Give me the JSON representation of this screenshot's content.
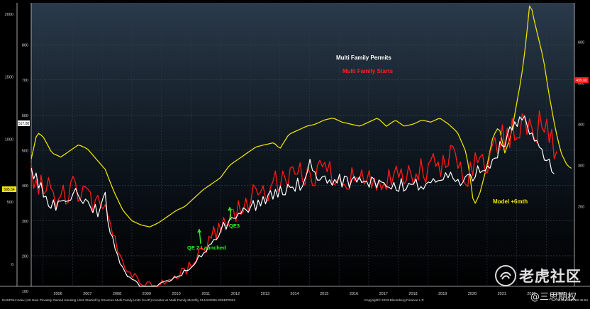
{
  "chart_data": {
    "type": "line",
    "x_ticks": [
      "2006",
      "2007",
      "2008",
      "2009",
      "2010",
      "2011",
      "2012",
      "2013",
      "2014",
      "2015",
      "2016",
      "2017",
      "2018",
      "2019",
      "2020",
      "2021",
      "2022",
      "2023"
    ],
    "left_axis_outer_ticks": [
      "2000",
      "1500",
      "1000",
      "500",
      "0"
    ],
    "left_axis_inner_ticks": [
      "800",
      "700",
      "600",
      "500",
      "400",
      "300",
      "200",
      "100"
    ],
    "right_axis_ticks": [
      "600",
      "500",
      "400",
      "300",
      "200"
    ],
    "grid": true,
    "series": [
      {
        "name": "Multi Family Permits",
        "color": "#ffffff",
        "axis": "left-inner",
        "anchors": [
          [
            2005.6,
            450
          ],
          [
            2005.8,
            410
          ],
          [
            2006.0,
            375
          ],
          [
            2006.2,
            355
          ],
          [
            2006.5,
            340
          ],
          [
            2006.8,
            360
          ],
          [
            2007.0,
            385
          ],
          [
            2007.3,
            370
          ],
          [
            2007.6,
            345
          ],
          [
            2007.8,
            330
          ],
          [
            2008.0,
            315
          ],
          [
            2008.05,
            430
          ],
          [
            2008.15,
            300
          ],
          [
            2008.4,
            240
          ],
          [
            2008.6,
            175
          ],
          [
            2008.9,
            140
          ],
          [
            2009.1,
            125
          ],
          [
            2009.3,
            110
          ],
          [
            2009.5,
            105
          ],
          [
            2009.8,
            112
          ],
          [
            2010.0,
            120
          ],
          [
            2010.3,
            130
          ],
          [
            2010.6,
            145
          ],
          [
            2010.9,
            160
          ],
          [
            2011.2,
            185
          ],
          [
            2011.5,
            215
          ],
          [
            2011.8,
            250
          ],
          [
            2012.1,
            280
          ],
          [
            2012.4,
            300
          ],
          [
            2012.7,
            325
          ],
          [
            2013.0,
            335
          ],
          [
            2013.3,
            355
          ],
          [
            2013.6,
            365
          ],
          [
            2014.0,
            380
          ],
          [
            2014.3,
            395
          ],
          [
            2014.6,
            400
          ],
          [
            2014.9,
            410
          ],
          [
            2015.0,
            440
          ],
          [
            2015.05,
            470
          ],
          [
            2015.2,
            415
          ],
          [
            2015.5,
            405
          ],
          [
            2015.8,
            420
          ],
          [
            2016.1,
            415
          ],
          [
            2016.5,
            410
          ],
          [
            2016.9,
            410
          ],
          [
            2017.3,
            400
          ],
          [
            2017.7,
            395
          ],
          [
            2018.1,
            398
          ],
          [
            2018.5,
            402
          ],
          [
            2018.9,
            405
          ],
          [
            2019.3,
            410
          ],
          [
            2019.7,
            430
          ],
          [
            2020.0,
            415
          ],
          [
            2020.2,
            390
          ],
          [
            2020.35,
            425
          ],
          [
            2020.6,
            440
          ],
          [
            2020.9,
            455
          ],
          [
            2021.2,
            480
          ],
          [
            2021.5,
            510
          ],
          [
            2021.8,
            545
          ],
          [
            2022.0,
            570
          ],
          [
            2022.15,
            575
          ],
          [
            2022.4,
            560
          ],
          [
            2022.7,
            525
          ],
          [
            2023.0,
            480
          ],
          [
            2023.2,
            445
          ],
          [
            2023.3,
            430
          ]
        ]
      },
      {
        "name": "Multi Family Starts",
        "color": "#ff1a1a",
        "axis": "left-inner",
        "anchors": [
          [
            2005.6,
            445
          ],
          [
            2005.9,
            405
          ],
          [
            2006.2,
            385
          ],
          [
            2006.5,
            360
          ],
          [
            2006.8,
            375
          ],
          [
            2007.0,
            390
          ],
          [
            2007.3,
            380
          ],
          [
            2007.6,
            355
          ],
          [
            2007.9,
            340
          ],
          [
            2008.1,
            320
          ],
          [
            2008.4,
            250
          ],
          [
            2008.7,
            180
          ],
          [
            2009.0,
            150
          ],
          [
            2009.3,
            125
          ],
          [
            2009.6,
            115
          ],
          [
            2009.9,
            120
          ],
          [
            2010.2,
            128
          ],
          [
            2010.5,
            140
          ],
          [
            2010.8,
            158
          ],
          [
            2011.1,
            185
          ],
          [
            2011.4,
            215
          ],
          [
            2011.7,
            255
          ],
          [
            2012.0,
            290
          ],
          [
            2012.3,
            305
          ],
          [
            2012.6,
            335
          ],
          [
            2012.9,
            350
          ],
          [
            2013.2,
            375
          ],
          [
            2013.5,
            385
          ],
          [
            2013.8,
            400
          ],
          [
            2014.1,
            410
          ],
          [
            2014.4,
            415
          ],
          [
            2014.8,
            425
          ],
          [
            2015.1,
            435
          ],
          [
            2015.4,
            440
          ],
          [
            2015.7,
            445
          ],
          [
            2016.0,
            420
          ],
          [
            2016.3,
            430
          ],
          [
            2016.6,
            425
          ],
          [
            2016.9,
            410
          ],
          [
            2017.3,
            415
          ],
          [
            2017.7,
            405
          ],
          [
            2018.1,
            420
          ],
          [
            2018.5,
            425
          ],
          [
            2018.9,
            440
          ],
          [
            2019.3,
            450
          ],
          [
            2019.6,
            460
          ],
          [
            2019.8,
            480
          ],
          [
            2020.0,
            470
          ],
          [
            2020.3,
            430
          ],
          [
            2020.6,
            465
          ],
          [
            2020.9,
            470
          ],
          [
            2021.2,
            495
          ],
          [
            2021.5,
            520
          ],
          [
            2021.8,
            540
          ],
          [
            2022.0,
            555
          ],
          [
            2022.3,
            565
          ],
          [
            2022.6,
            580
          ],
          [
            2022.9,
            560
          ],
          [
            2023.2,
            520
          ],
          [
            2023.4,
            500
          ]
        ]
      },
      {
        "name": "Model +6mth",
        "color": "#e8e000",
        "axis": "right",
        "anchors": [
          [
            2005.6,
            315
          ],
          [
            2005.8,
            380
          ],
          [
            2006.0,
            370
          ],
          [
            2006.3,
            330
          ],
          [
            2006.6,
            320
          ],
          [
            2006.9,
            335
          ],
          [
            2007.2,
            350
          ],
          [
            2007.5,
            340
          ],
          [
            2007.8,
            315
          ],
          [
            2008.1,
            290
          ],
          [
            2008.4,
            235
          ],
          [
            2008.7,
            190
          ],
          [
            2009.0,
            165
          ],
          [
            2009.3,
            155
          ],
          [
            2009.6,
            150
          ],
          [
            2009.9,
            160
          ],
          [
            2010.2,
            175
          ],
          [
            2010.5,
            190
          ],
          [
            2010.8,
            200
          ],
          [
            2011.1,
            220
          ],
          [
            2011.4,
            240
          ],
          [
            2011.7,
            255
          ],
          [
            2012.0,
            270
          ],
          [
            2012.3,
            300
          ],
          [
            2012.6,
            315
          ],
          [
            2012.9,
            330
          ],
          [
            2013.2,
            345
          ],
          [
            2013.5,
            350
          ],
          [
            2013.8,
            355
          ],
          [
            2014.0,
            340
          ],
          [
            2014.3,
            375
          ],
          [
            2014.6,
            385
          ],
          [
            2014.9,
            395
          ],
          [
            2015.2,
            400
          ],
          [
            2015.5,
            410
          ],
          [
            2015.8,
            415
          ],
          [
            2016.1,
            405
          ],
          [
            2016.4,
            400
          ],
          [
            2016.7,
            395
          ],
          [
            2017.0,
            405
          ],
          [
            2017.3,
            415
          ],
          [
            2017.6,
            395
          ],
          [
            2017.9,
            410
          ],
          [
            2018.2,
            395
          ],
          [
            2018.5,
            400
          ],
          [
            2018.8,
            410
          ],
          [
            2019.1,
            405
          ],
          [
            2019.4,
            415
          ],
          [
            2019.7,
            400
          ],
          [
            2020.0,
            380
          ],
          [
            2020.3,
            330
          ],
          [
            2020.45,
            260
          ],
          [
            2020.55,
            200
          ],
          [
            2020.75,
            230
          ],
          [
            2021.0,
            300
          ],
          [
            2021.2,
            370
          ],
          [
            2021.4,
            395
          ],
          [
            2021.6,
            330
          ],
          [
            2021.8,
            370
          ],
          [
            2022.0,
            450
          ],
          [
            2022.15,
            510
          ],
          [
            2022.3,
            590
          ],
          [
            2022.45,
            700
          ],
          [
            2022.6,
            650
          ],
          [
            2022.9,
            560
          ],
          [
            2023.1,
            470
          ],
          [
            2023.3,
            390
          ],
          [
            2023.5,
            330
          ],
          [
            2023.7,
            300
          ],
          [
            2023.9,
            290
          ]
        ]
      }
    ],
    "annotations": [
      {
        "text": "Multi Family Permits",
        "color": "#ffffff"
      },
      {
        "text": "Multi Family Starts",
        "color": "#ff2020"
      },
      {
        "text": "Model +6mth",
        "color": "#f2e600"
      },
      {
        "text": "QE 2 Launched",
        "color": "#22ff22"
      },
      {
        "text": "QE3",
        "color": "#22ff22"
      }
    ],
    "value_tags": [
      {
        "text": "517.00",
        "axis": "left"
      },
      {
        "text": "595.54",
        "axis": "left"
      },
      {
        "text": "499.00",
        "axis": "right"
      }
    ]
  },
  "footer": {
    "left": "NHSPSH Index (US New Privately Owned Housing Units Started by Structure Multi Family Units SAAR) Investor vs Multi Family  Monthly 31JAN2006-30SEP2024",
    "center": "Copyright© 2023 Bloomberg Finance L.P.",
    "right": "16-Oct-2023 12:46:54"
  },
  "watermark": {
    "brand": "老虎社区",
    "handle": "@三思期权"
  }
}
